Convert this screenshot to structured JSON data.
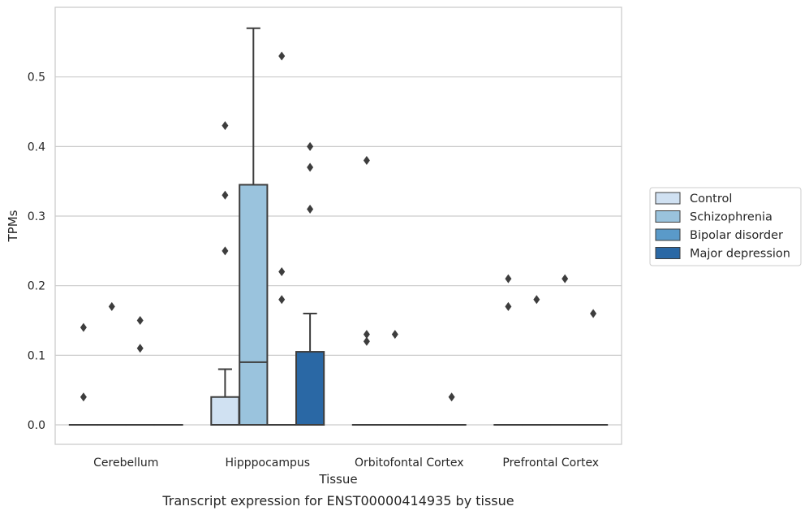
{
  "chart_data": {
    "type": "box",
    "xlabel": "Tissue",
    "ylabel": "TPMs",
    "caption": "Transcript expression for ENST00000414935 by tissue",
    "categories": [
      "Cerebellum",
      "Hipppocampus",
      "Orbitofontal Cortex",
      "Prefrontal Cortex"
    ],
    "ylim": [
      -0.028,
      0.6
    ],
    "yticks": [
      0.0,
      0.1,
      0.2,
      0.3,
      0.4,
      0.5
    ],
    "ytick_labels": [
      "0.0",
      "0.1",
      "0.2",
      "0.3",
      "0.4",
      "0.5"
    ],
    "grid": true,
    "legend_position": "right",
    "series": [
      {
        "name": "Control",
        "color": "#d0e1f2",
        "boxes": [
          {
            "q1": 0,
            "median": 0,
            "q3": 0,
            "whisker_low": 0,
            "whisker_high": 0,
            "outliers": [
              0.04,
              0.14
            ]
          },
          {
            "q1": 0,
            "median": 0,
            "q3": 0.04,
            "whisker_low": 0,
            "whisker_high": 0.08,
            "outliers": [
              0.25,
              0.33,
              0.43
            ]
          },
          {
            "q1": 0,
            "median": 0,
            "q3": 0,
            "whisker_low": 0,
            "whisker_high": 0,
            "outliers": [
              0.12,
              0.13,
              0.38
            ]
          },
          {
            "q1": 0,
            "median": 0,
            "q3": 0,
            "whisker_low": 0,
            "whisker_high": 0,
            "outliers": [
              0.17,
              0.21
            ]
          }
        ]
      },
      {
        "name": "Schizophrenia",
        "color": "#9ac3dd",
        "boxes": [
          {
            "q1": 0,
            "median": 0,
            "q3": 0,
            "whisker_low": 0,
            "whisker_high": 0,
            "outliers": [
              0.17
            ]
          },
          {
            "q1": 0,
            "median": 0.09,
            "q3": 0.345,
            "whisker_low": 0,
            "whisker_high": 0.57,
            "outliers": []
          },
          {
            "q1": 0,
            "median": 0,
            "q3": 0,
            "whisker_low": 0,
            "whisker_high": 0,
            "outliers": [
              0.13
            ]
          },
          {
            "q1": 0,
            "median": 0,
            "q3": 0,
            "whisker_low": 0,
            "whisker_high": 0,
            "outliers": [
              0.18
            ]
          }
        ]
      },
      {
        "name": "Bipolar disorder",
        "color": "#5a9ac9",
        "boxes": [
          {
            "q1": 0,
            "median": 0,
            "q3": 0,
            "whisker_low": 0,
            "whisker_high": 0,
            "outliers": [
              0.11,
              0.15
            ]
          },
          {
            "q1": 0,
            "median": 0,
            "q3": 0,
            "whisker_low": 0,
            "whisker_high": 0,
            "outliers": [
              0.18,
              0.22,
              0.53
            ]
          },
          {
            "q1": 0,
            "median": 0,
            "q3": 0,
            "whisker_low": 0,
            "whisker_high": 0,
            "outliers": []
          },
          {
            "q1": 0,
            "median": 0,
            "q3": 0,
            "whisker_low": 0,
            "whisker_high": 0,
            "outliers": [
              0.21
            ]
          }
        ]
      },
      {
        "name": "Major depression",
        "color": "#2a68a5",
        "boxes": [
          {
            "q1": 0,
            "median": 0,
            "q3": 0,
            "whisker_low": 0,
            "whisker_high": 0,
            "outliers": []
          },
          {
            "q1": 0,
            "median": 0,
            "q3": 0.105,
            "whisker_low": 0,
            "whisker_high": 0.16,
            "outliers": [
              0.31,
              0.37,
              0.4
            ]
          },
          {
            "q1": 0,
            "median": 0,
            "q3": 0,
            "whisker_low": 0,
            "whisker_high": 0,
            "outliers": [
              0.04
            ]
          },
          {
            "q1": 0,
            "median": 0,
            "q3": 0,
            "whisker_low": 0,
            "whisker_high": 0,
            "outliers": [
              0.16
            ]
          }
        ]
      }
    ]
  }
}
